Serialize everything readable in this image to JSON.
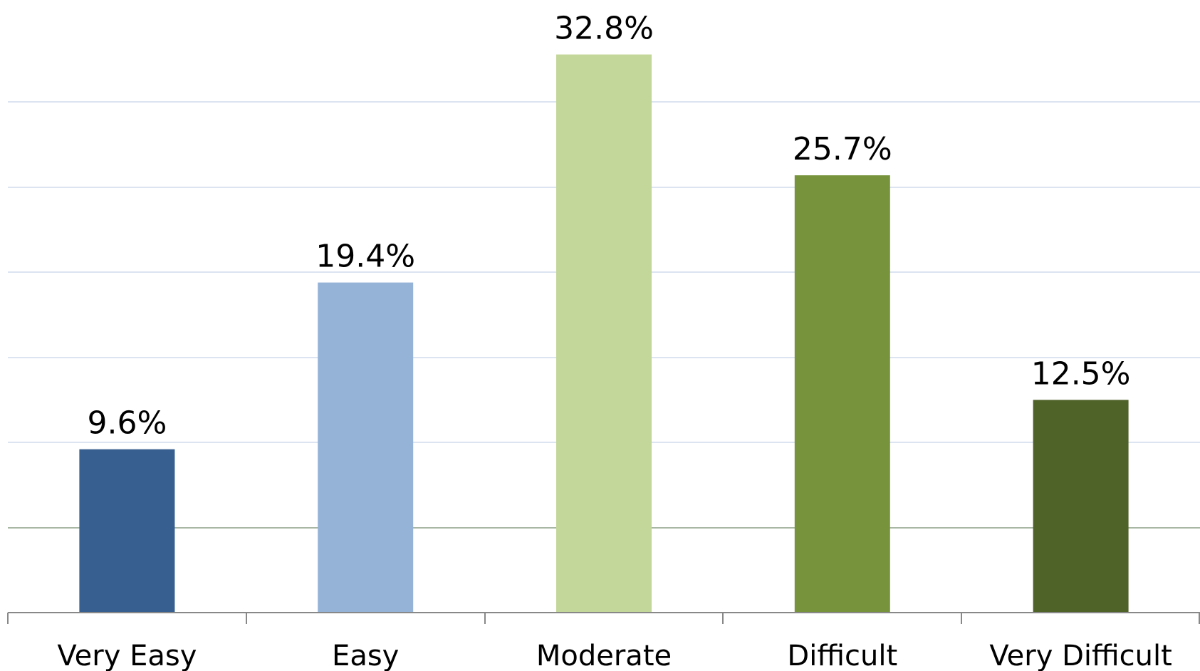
{
  "chart_data": {
    "type": "bar",
    "categories": [
      "Very Easy",
      "Easy",
      "Moderate",
      "Difficult",
      "Very Difficult"
    ],
    "values": [
      9.6,
      19.4,
      32.8,
      25.7,
      12.5
    ],
    "value_labels": [
      "9.6%",
      "19.4%",
      "32.8%",
      "25.7%",
      "12.5%"
    ],
    "colors": [
      "#375f8f",
      "#95b3d7",
      "#c4d79b",
      "#77933c",
      "#4f6228"
    ],
    "title": "",
    "xlabel": "",
    "ylabel": "",
    "ylim": [
      0,
      35
    ],
    "grid": true,
    "legend": "none"
  }
}
